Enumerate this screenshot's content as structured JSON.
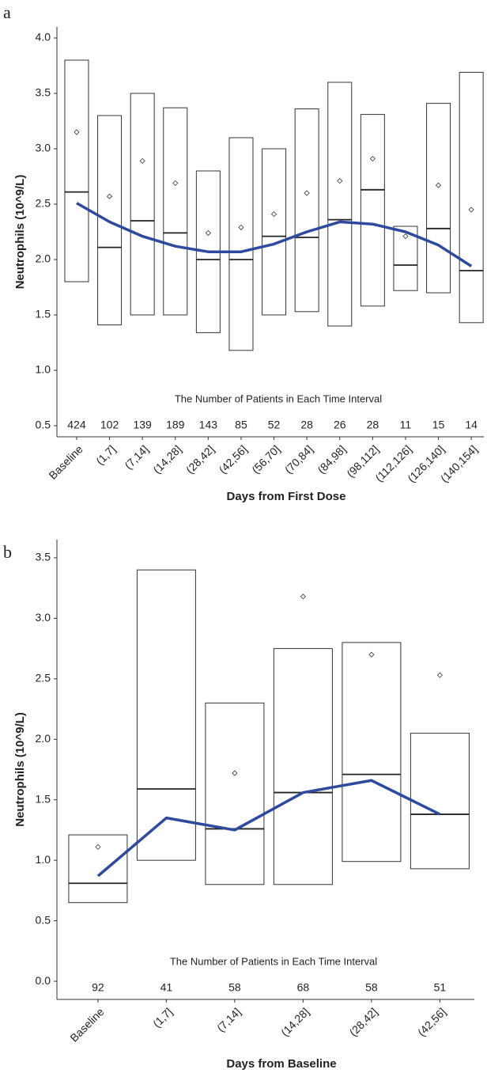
{
  "chart_data": [
    {
      "type": "box",
      "panel_label": "a",
      "ylabel": "Neutrophils (10^9/L)",
      "xlabel": "Days from First Dose",
      "annotation": "The Number of Patients in Each Time Interval",
      "categories": [
        "Baseline",
        "(1,7]",
        "(7,14]",
        "(14,28]",
        "(28,42]",
        "(42,56]",
        "(56,70]",
        "(70,84]",
        "(84,98]",
        "(98,112]",
        "(112,126]",
        "(126,140]",
        "(140,154]"
      ],
      "q1": [
        1.8,
        1.41,
        1.5,
        1.5,
        1.34,
        1.18,
        1.5,
        1.53,
        1.4,
        1.58,
        1.72,
        1.7,
        1.43
      ],
      "median": [
        2.61,
        2.11,
        2.35,
        2.24,
        2.0,
        2.0,
        2.21,
        2.2,
        2.36,
        2.63,
        1.95,
        2.28,
        1.9
      ],
      "q3": [
        3.8,
        3.3,
        3.5,
        3.37,
        2.8,
        3.1,
        3.0,
        3.36,
        3.6,
        3.31,
        2.3,
        3.41,
        3.69
      ],
      "mean": [
        3.15,
        2.57,
        2.89,
        2.69,
        2.24,
        2.29,
        2.41,
        2.6,
        2.71,
        2.91,
        2.21,
        2.67,
        2.45
      ],
      "trend": {
        "color": "#2e4a9e",
        "values": [
          2.51,
          2.34,
          2.21,
          2.12,
          2.07,
          2.07,
          2.14,
          2.25,
          2.34,
          2.32,
          2.25,
          2.13,
          1.94
        ]
      },
      "counts": [
        424,
        102,
        139,
        189,
        143,
        85,
        52,
        28,
        26,
        28,
        11,
        15,
        14
      ],
      "ylim": [
        0.4,
        4.1
      ],
      "yticks": [
        {
          "value": 0.5,
          "label": "0.5"
        },
        {
          "value": 1,
          "label": "1.0"
        },
        {
          "value": 1.5,
          "label": "1.5"
        },
        {
          "value": 2,
          "label": "2.0"
        },
        {
          "value": 2.5,
          "label": "2.5"
        },
        {
          "value": 3,
          "label": "3.0"
        },
        {
          "value": 3.5,
          "label": "3.5"
        },
        {
          "value": 4,
          "label": "4.0"
        }
      ]
    },
    {
      "type": "box",
      "panel_label": "b",
      "ylabel": "Neutrophils (10^9/L)",
      "xlabel": "Days from Baseline",
      "annotation": "The Number of Patients in Each Time Interval",
      "categories": [
        "Baseline",
        "(1,7]",
        "(7,14]",
        "(14,28]",
        "(28,42]",
        "(42,56]"
      ],
      "q1": [
        0.65,
        1.0,
        0.8,
        0.8,
        0.99,
        0.93
      ],
      "median": [
        0.81,
        1.59,
        1.26,
        1.56,
        1.71,
        1.38
      ],
      "q3": [
        1.21,
        3.4,
        2.3,
        2.75,
        2.8,
        2.05
      ],
      "mean": [
        1.11,
        null,
        1.72,
        3.18,
        2.7,
        2.53
      ],
      "trend": {
        "color": "#2e4a9e",
        "values": [
          0.87,
          1.35,
          1.25,
          1.56,
          1.66,
          1.38
        ]
      },
      "counts": [
        92,
        41,
        58,
        68,
        58,
        51
      ],
      "ylim": [
        -0.15,
        3.65
      ],
      "yticks": [
        {
          "value": 0,
          "label": "0.0"
        },
        {
          "value": 0.5,
          "label": "0.5"
        },
        {
          "value": 1,
          "label": "1.0"
        },
        {
          "value": 1.5,
          "label": "1.5"
        },
        {
          "value": 2,
          "label": "2.0"
        },
        {
          "value": 2.5,
          "label": "2.5"
        },
        {
          "value": 3,
          "label": "3.0"
        },
        {
          "value": 3.5,
          "label": "3.5"
        }
      ]
    }
  ]
}
